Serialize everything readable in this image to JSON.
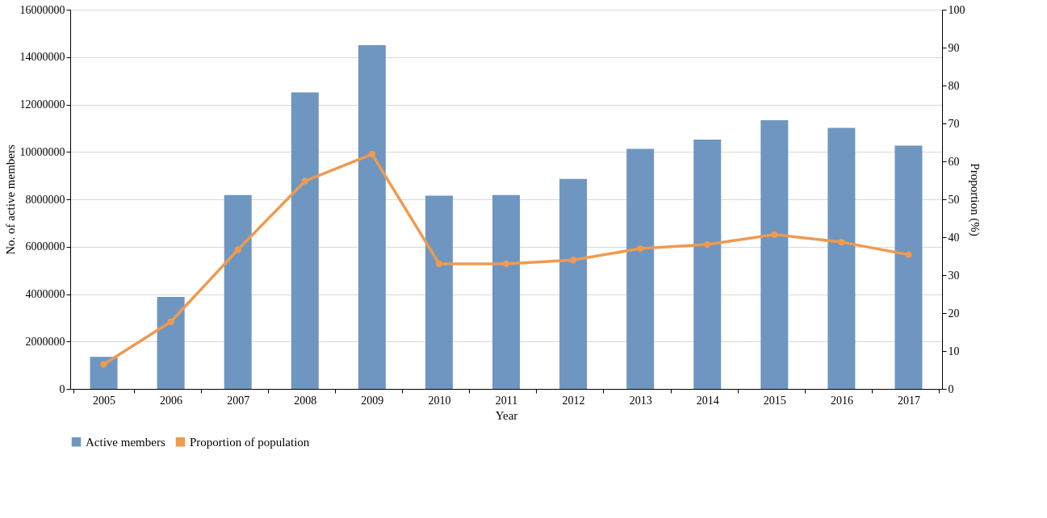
{
  "chart_data": {
    "type": "bar",
    "xlabel": "Year",
    "ylabel": "No. of active members",
    "y2label": "Proportion (%)",
    "categories": [
      "2005",
      "2006",
      "2007",
      "2008",
      "2009",
      "2010",
      "2011",
      "2012",
      "2013",
      "2014",
      "2015",
      "2016",
      "2017"
    ],
    "series": [
      {
        "name": "Active members",
        "color": "#6f96c0",
        "values": [
          1350000,
          3880000,
          8180000,
          12510000,
          14500000,
          8150000,
          8180000,
          8860000,
          10130000,
          10520000,
          11340000,
          11010000,
          10260000
        ]
      },
      {
        "name": "Proportion of population",
        "type": "line",
        "axis": "y2",
        "color": "#ee9b50",
        "marker": "circle",
        "values": [
          6.5,
          17.7,
          36.7,
          54.8,
          61.9,
          33.0,
          33.0,
          34.0,
          37.0,
          38.1,
          40.7,
          38.7,
          35.4
        ]
      }
    ],
    "ylim": [
      0,
      16000000
    ],
    "yticks": [
      0,
      2000000,
      4000000,
      6000000,
      8000000,
      10000000,
      12000000,
      14000000,
      16000000
    ],
    "y2lim": [
      0,
      100
    ],
    "y2ticks": [
      0,
      10,
      20,
      30,
      40,
      50,
      60,
      70,
      80,
      90,
      100
    ],
    "grid": "y",
    "legend": "bottom"
  }
}
